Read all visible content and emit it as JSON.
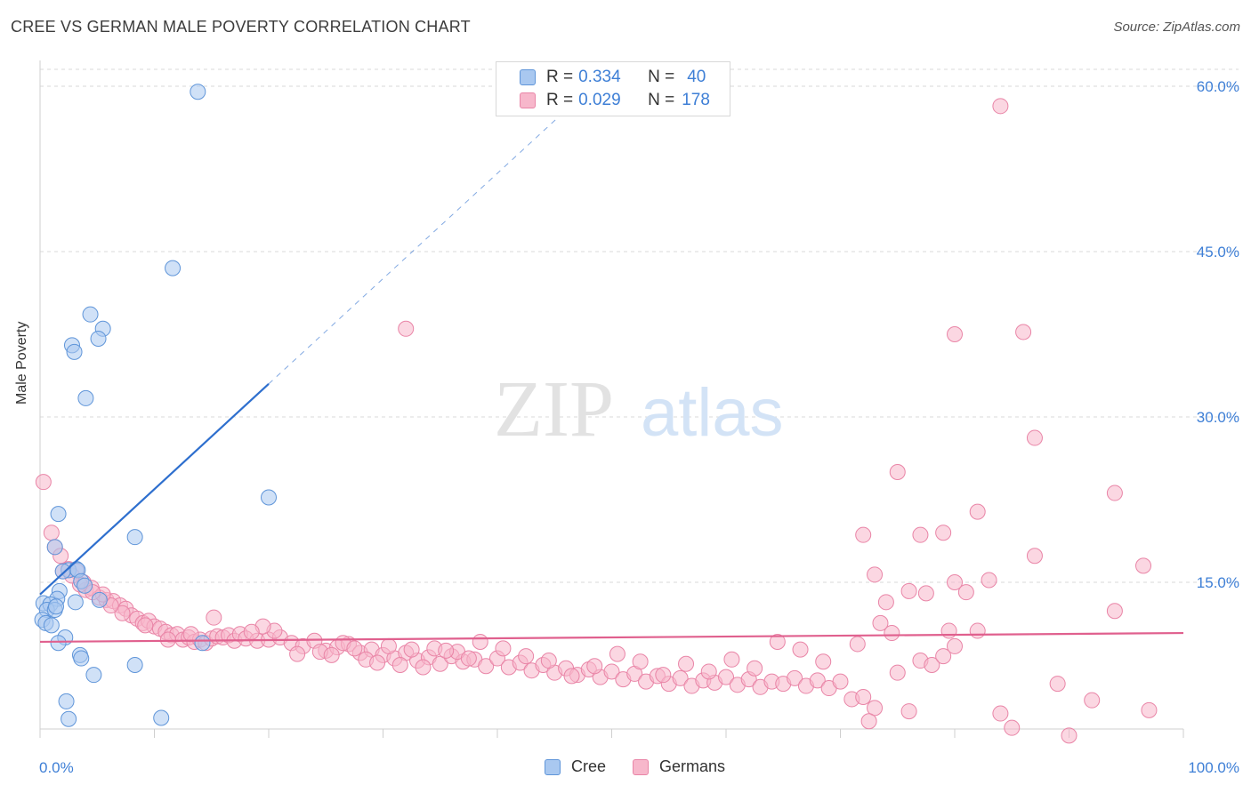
{
  "title": "CREE VS GERMAN MALE POVERTY CORRELATION CHART",
  "source": "Source: ZipAtlas.com",
  "watermark": {
    "zip": "ZIP",
    "atlas": "atlas"
  },
  "legend": {
    "rows": [
      {
        "r_label": "R =",
        "r_value": "0.334",
        "n_label": "N =",
        "n_value": "40"
      },
      {
        "r_label": "R =",
        "r_value": "0.029",
        "n_label": "N =",
        "n_value": "178"
      }
    ]
  },
  "bottom_legend": [
    "Cree",
    "Germans"
  ],
  "colors": {
    "cree_fill": "#a9c8f0",
    "cree_stroke": "#5f95d9",
    "cree_line": "#2e6fce",
    "german_fill": "#f7b7cb",
    "german_stroke": "#e985a7",
    "german_line": "#e0608e",
    "tick": "#3e7fd6",
    "grid": "#d9d9d9"
  },
  "chart_data": {
    "type": "scatter",
    "title": "CREE VS GERMAN MALE POVERTY CORRELATION CHART",
    "xlabel": "",
    "ylabel": "Male Poverty",
    "xlim": [
      0,
      100
    ],
    "ylim": [
      0,
      61
    ],
    "x_tick_labels": [
      "0.0%",
      "100.0%"
    ],
    "y_ticks": [
      15,
      30,
      45,
      60
    ],
    "y_tick_labels": [
      "15.0%",
      "30.0%",
      "45.0%",
      "60.0%"
    ],
    "grid": true,
    "series": [
      {
        "name": "Cree",
        "r": 0.334,
        "n": 40,
        "trend": {
          "x0": 0,
          "y0": 13.9,
          "x1": 20,
          "y1": 33.0,
          "dashed_to_x": 46
        },
        "points": [
          [
            13.8,
            59.5
          ],
          [
            11.6,
            43.5
          ],
          [
            4.4,
            39.3
          ],
          [
            5.5,
            38.0
          ],
          [
            2.8,
            36.5
          ],
          [
            5.1,
            37.1
          ],
          [
            3.0,
            35.9
          ],
          [
            4.0,
            31.7
          ],
          [
            20.0,
            22.7
          ],
          [
            1.6,
            21.2
          ],
          [
            8.3,
            19.1
          ],
          [
            1.3,
            18.2
          ],
          [
            2.5,
            16.1
          ],
          [
            3.2,
            16.2
          ],
          [
            3.3,
            16.1
          ],
          [
            2.0,
            16.0
          ],
          [
            3.6,
            15.1
          ],
          [
            3.9,
            14.7
          ],
          [
            1.7,
            14.2
          ],
          [
            1.5,
            13.5
          ],
          [
            0.3,
            13.1
          ],
          [
            0.9,
            13.0
          ],
          [
            3.1,
            13.2
          ],
          [
            5.2,
            13.4
          ],
          [
            0.6,
            12.5
          ],
          [
            1.3,
            12.5
          ],
          [
            0.2,
            11.6
          ],
          [
            0.5,
            11.3
          ],
          [
            1.0,
            11.1
          ],
          [
            2.2,
            10.0
          ],
          [
            1.6,
            9.5
          ],
          [
            14.2,
            9.5
          ],
          [
            3.5,
            8.4
          ],
          [
            3.6,
            8.1
          ],
          [
            8.3,
            7.5
          ],
          [
            4.7,
            6.6
          ],
          [
            2.3,
            4.2
          ],
          [
            2.5,
            2.6
          ],
          [
            10.6,
            2.7
          ],
          [
            1.4,
            12.8
          ]
        ]
      },
      {
        "name": "Germans",
        "r": 0.029,
        "n": 178,
        "trend": {
          "x0": 0,
          "y0": 9.6,
          "x1": 100,
          "y1": 10.4
        },
        "points": [
          [
            84,
            58.2
          ],
          [
            32,
            38
          ],
          [
            80,
            37.5
          ],
          [
            86,
            37.7
          ],
          [
            87,
            28.1
          ],
          [
            0.3,
            24.1
          ],
          [
            75,
            25
          ],
          [
            94,
            23.1
          ],
          [
            82,
            21.4
          ],
          [
            1,
            19.5
          ],
          [
            72,
            19.3
          ],
          [
            77,
            19.3
          ],
          [
            79,
            19.5
          ],
          [
            1.3,
            18.2
          ],
          [
            1.8,
            17.4
          ],
          [
            87,
            17.4
          ],
          [
            73,
            15.7
          ],
          [
            2,
            16
          ],
          [
            2.5,
            16.2
          ],
          [
            3.2,
            16
          ],
          [
            80,
            15
          ],
          [
            83,
            15.2
          ],
          [
            81,
            14.1
          ],
          [
            76,
            14.2
          ],
          [
            3.8,
            15
          ],
          [
            4,
            14.3
          ],
          [
            4.5,
            14.5
          ],
          [
            5.2,
            13.6
          ],
          [
            5.8,
            13.4
          ],
          [
            6.4,
            13.3
          ],
          [
            7,
            12.9
          ],
          [
            7.5,
            12.6
          ],
          [
            8,
            12
          ],
          [
            8.5,
            11.7
          ],
          [
            9,
            11.3
          ],
          [
            9.5,
            11.5
          ],
          [
            10,
            11.0
          ],
          [
            10.5,
            10.8
          ],
          [
            11,
            10.5
          ],
          [
            11.5,
            10.2
          ],
          [
            12,
            10.3
          ],
          [
            12.5,
            9.8
          ],
          [
            13,
            10.0
          ],
          [
            13.5,
            9.6
          ],
          [
            14,
            9.8
          ],
          [
            14.5,
            9.5
          ],
          [
            15,
            9.9
          ],
          [
            15.5,
            10.1
          ],
          [
            16,
            10.0
          ],
          [
            16.5,
            10.2
          ],
          [
            17,
            9.7
          ],
          [
            17.5,
            10.3
          ],
          [
            18,
            9.9
          ],
          [
            19,
            9.7
          ],
          [
            20,
            9.8
          ],
          [
            21,
            10.0
          ],
          [
            22,
            9.5
          ],
          [
            23,
            9.2
          ],
          [
            24,
            9.7
          ],
          [
            25,
            8.8
          ],
          [
            26,
            9.1
          ],
          [
            27,
            9.4
          ],
          [
            28,
            8.6
          ],
          [
            29,
            8.9
          ],
          [
            30,
            8.4
          ],
          [
            31,
            8.1
          ],
          [
            32,
            8.6
          ],
          [
            33,
            7.9
          ],
          [
            34,
            8.2
          ],
          [
            35,
            7.6
          ],
          [
            36,
            8.3
          ],
          [
            37,
            7.8
          ],
          [
            38,
            8.0
          ],
          [
            39,
            7.4
          ],
          [
            40,
            8.1
          ],
          [
            41,
            7.3
          ],
          [
            42,
            7.7
          ],
          [
            43,
            7.0
          ],
          [
            44,
            7.5
          ],
          [
            45,
            6.8
          ],
          [
            46,
            7.2
          ],
          [
            47,
            6.6
          ],
          [
            48,
            7.1
          ],
          [
            49,
            6.4
          ],
          [
            50,
            6.9
          ],
          [
            51,
            6.2
          ],
          [
            52,
            6.7
          ],
          [
            53,
            6.0
          ],
          [
            54,
            6.5
          ],
          [
            55,
            5.8
          ],
          [
            56,
            6.3
          ],
          [
            57,
            5.6
          ],
          [
            58,
            6.1
          ],
          [
            59,
            5.9
          ],
          [
            60,
            6.4
          ],
          [
            61,
            5.7
          ],
          [
            62,
            6.2
          ],
          [
            63,
            5.5
          ],
          [
            64,
            6.0
          ],
          [
            65,
            5.8
          ],
          [
            66,
            6.3
          ],
          [
            67,
            5.6
          ],
          [
            68,
            6.1
          ],
          [
            69,
            5.4
          ],
          [
            70,
            6.0
          ],
          [
            71,
            4.4
          ],
          [
            72,
            4.6
          ],
          [
            73,
            3.6
          ],
          [
            74,
            13.2
          ],
          [
            75,
            6.8
          ],
          [
            76,
            3.3
          ],
          [
            77,
            7.9
          ],
          [
            78,
            7.5
          ],
          [
            79,
            8.3
          ],
          [
            80,
            9.2
          ],
          [
            82,
            10.6
          ],
          [
            84,
            3.1
          ],
          [
            85,
            1.8
          ],
          [
            89,
            5.8
          ],
          [
            90,
            1.1
          ],
          [
            92,
            4.3
          ],
          [
            94,
            12.4
          ],
          [
            97,
            3.4
          ],
          [
            96.5,
            16.5
          ],
          [
            71.5,
            9.4
          ],
          [
            73.5,
            11.3
          ],
          [
            74.5,
            10.4
          ],
          [
            77.5,
            14.0
          ],
          [
            79.5,
            10.6
          ],
          [
            72.5,
            2.4
          ],
          [
            68.5,
            7.8
          ],
          [
            66.5,
            8.9
          ],
          [
            64.5,
            9.6
          ],
          [
            62.5,
            7.2
          ],
          [
            60.5,
            8.0
          ],
          [
            58.5,
            6.9
          ],
          [
            56.5,
            7.6
          ],
          [
            54.5,
            6.6
          ],
          [
            52.5,
            7.8
          ],
          [
            50.5,
            8.5
          ],
          [
            48.5,
            7.4
          ],
          [
            46.5,
            6.5
          ],
          [
            44.5,
            7.9
          ],
          [
            42.5,
            8.3
          ],
          [
            40.5,
            9.0
          ],
          [
            38.5,
            9.6
          ],
          [
            36.5,
            8.7
          ],
          [
            34.5,
            9.0
          ],
          [
            32.5,
            8.9
          ],
          [
            30.5,
            9.2
          ],
          [
            28.5,
            8.0
          ],
          [
            26.5,
            9.5
          ],
          [
            24.5,
            8.7
          ],
          [
            22.5,
            8.5
          ],
          [
            20.5,
            10.6
          ],
          [
            19.5,
            11.0
          ],
          [
            18.5,
            10.5
          ],
          [
            15.2,
            11.8
          ],
          [
            13.2,
            10.3
          ],
          [
            11.2,
            9.8
          ],
          [
            9.2,
            11.1
          ],
          [
            7.2,
            12.2
          ],
          [
            6.2,
            12.9
          ],
          [
            5.5,
            13.9
          ],
          [
            4.6,
            14.1
          ],
          [
            3.5,
            14.8
          ],
          [
            2.8,
            15.6
          ],
          [
            25.5,
            8.4
          ],
          [
            27.5,
            9.0
          ],
          [
            29.5,
            7.7
          ],
          [
            31.5,
            7.5
          ],
          [
            33.5,
            7.3
          ],
          [
            35.5,
            8.8
          ],
          [
            37.5,
            8.1
          ]
        ]
      }
    ]
  }
}
